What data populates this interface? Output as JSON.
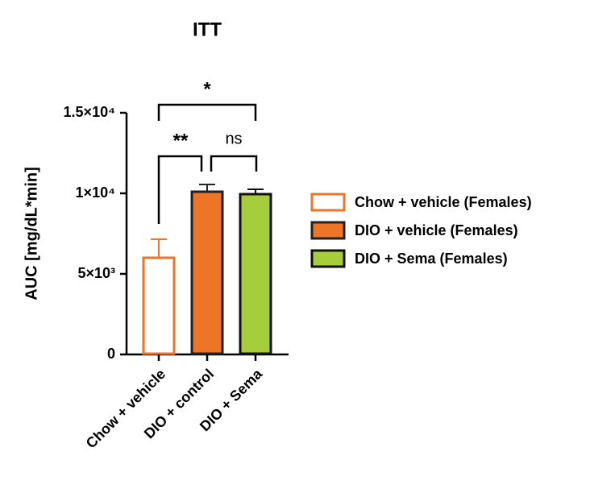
{
  "chart_data": {
    "type": "bar",
    "title": "ITT",
    "y_label": "AUC [mg/dL*min]",
    "categories": [
      "Chow + vehicle",
      "DIO + control",
      "DIO + Sema"
    ],
    "values": [
      6000,
      10100,
      9950
    ],
    "errors": [
      1150,
      450,
      300
    ],
    "fills": [
      "#ffffff",
      "#ee7527",
      "#a6cd3a"
    ],
    "strokes": [
      "#ee7527",
      "#222222",
      "#111111"
    ],
    "legend": [
      "Chow + vehicle (Females)",
      "DIO + vehicle (Females)",
      "DIO + Sema (Females)"
    ],
    "ylim": [
      0,
      15000
    ],
    "yticks": [
      0,
      {
        "value": 5000,
        "label": "5×10³"
      },
      {
        "value": 10000,
        "label": "1×10⁴"
      },
      {
        "value": 15000,
        "label": "1.5×10⁴"
      }
    ],
    "annotations": [
      "*",
      "**",
      "ns"
    ]
  }
}
